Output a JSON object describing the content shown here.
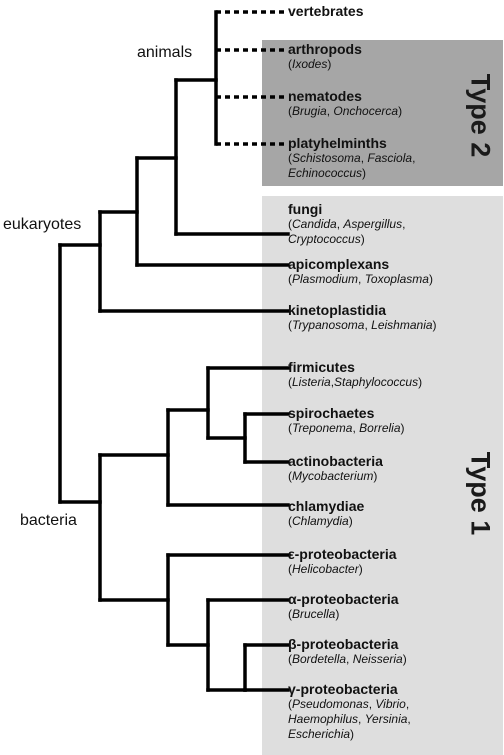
{
  "shading": {
    "type2": {
      "label": "Type 2",
      "color": "#a6a6a6"
    },
    "type1": {
      "label": "Type 1",
      "color": "#dedede"
    }
  },
  "group_labels": {
    "animals": "animals",
    "eukaryotes": "eukaryotes",
    "bacteria": "bacteria"
  },
  "taxa": [
    {
      "id": "vertebrates",
      "name": "vertebrates",
      "examples": ""
    },
    {
      "id": "arthropods",
      "name": "arthropods",
      "examples": "(Ixodes)"
    },
    {
      "id": "nematodes",
      "name": "nematodes",
      "examples": "(Brugia, Onchocerca)"
    },
    {
      "id": "platyhelminths",
      "name": "platyhelminths",
      "examples": "(Schistosoma, Fasciola,\nEchinococcus)"
    },
    {
      "id": "fungi",
      "name": "fungi",
      "examples": "(Candida, Aspergillus,\nCryptococcus)"
    },
    {
      "id": "apicomplexans",
      "name": "apicomplexans",
      "examples": "(Plasmodium, Toxoplasma)"
    },
    {
      "id": "kinetoplastidia",
      "name": "kinetoplastidia",
      "examples": "(Trypanosoma, Leishmania)"
    },
    {
      "id": "firmicutes",
      "name": "firmicutes",
      "examples": "(Listeria,Staphylococcus)"
    },
    {
      "id": "spirochaetes",
      "name": "spirochaetes",
      "examples": "(Treponema, Borrelia)"
    },
    {
      "id": "actinobacteria",
      "name": "actinobacteria",
      "examples": "(Mycobacterium)"
    },
    {
      "id": "chlamydiae",
      "name": "chlamydiae",
      "examples": "(Chlamydia)"
    },
    {
      "id": "epsilon-proteobacteria",
      "name": "ε-proteobacteria",
      "examples": "(Helicobacter)"
    },
    {
      "id": "alpha-proteobacteria",
      "name": "α-proteobacteria",
      "examples": "(Brucella)"
    },
    {
      "id": "beta-proteobacteria",
      "name": "β-proteobacteria",
      "examples": "(Bordetella, Neisseria)"
    },
    {
      "id": "gamma-proteobacteria",
      "name": "γ-proteobacteria",
      "examples": "(Pseudomonas, Vibrio,\nHaemophilus, Yersinia,\nEscherichia)"
    }
  ]
}
